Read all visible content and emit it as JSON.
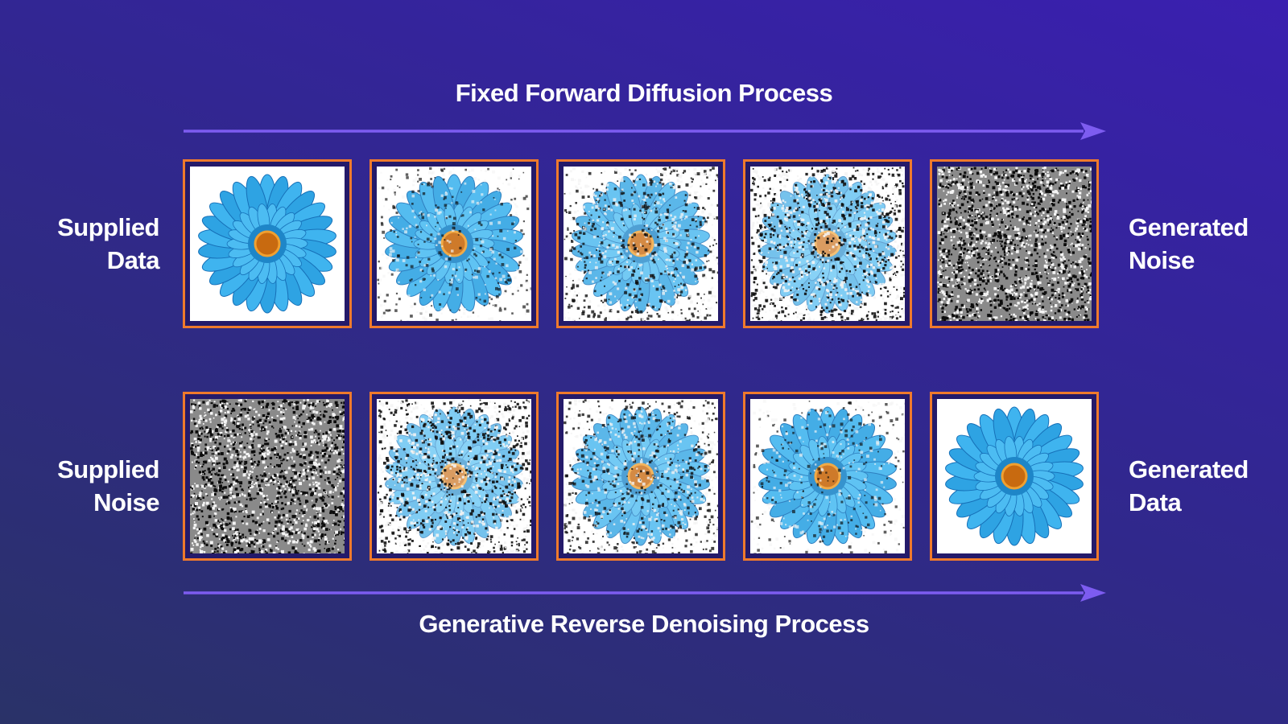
{
  "diagram": {
    "forward_title": "Fixed Forward Diffusion Process",
    "reverse_title": "Generative Reverse Denoising Process",
    "top_row": {
      "left_label": [
        "Supplied",
        "Data"
      ],
      "right_label": [
        "Generated",
        "Noise"
      ],
      "panels": [
        {
          "name": "clean-flower-image",
          "noise_level": 0.0
        },
        {
          "name": "slightly-noisy-flower-image",
          "noise_level": 0.25
        },
        {
          "name": "noisy-flower-image",
          "noise_level": 0.5
        },
        {
          "name": "very-noisy-flower-image",
          "noise_level": 0.75
        },
        {
          "name": "pure-noise-image",
          "noise_level": 1.0
        }
      ]
    },
    "bottom_row": {
      "left_label": [
        "Supplied",
        "Noise"
      ],
      "right_label": [
        "Generated",
        "Data"
      ],
      "panels": [
        {
          "name": "pure-noise-image",
          "noise_level": 1.0
        },
        {
          "name": "very-noisy-flower-image",
          "noise_level": 0.75
        },
        {
          "name": "noisy-flower-image",
          "noise_level": 0.5
        },
        {
          "name": "slightly-noisy-flower-image",
          "noise_level": 0.25
        },
        {
          "name": "clean-flower-image",
          "noise_level": 0.0
        }
      ]
    },
    "colors": {
      "frame": "#ef7a2c",
      "arrow": "#7d5cf0",
      "petal": "#2ea3e3",
      "petal_dark": "#1670b8",
      "center": "#c86a10",
      "center_light": "#f0a030"
    }
  }
}
